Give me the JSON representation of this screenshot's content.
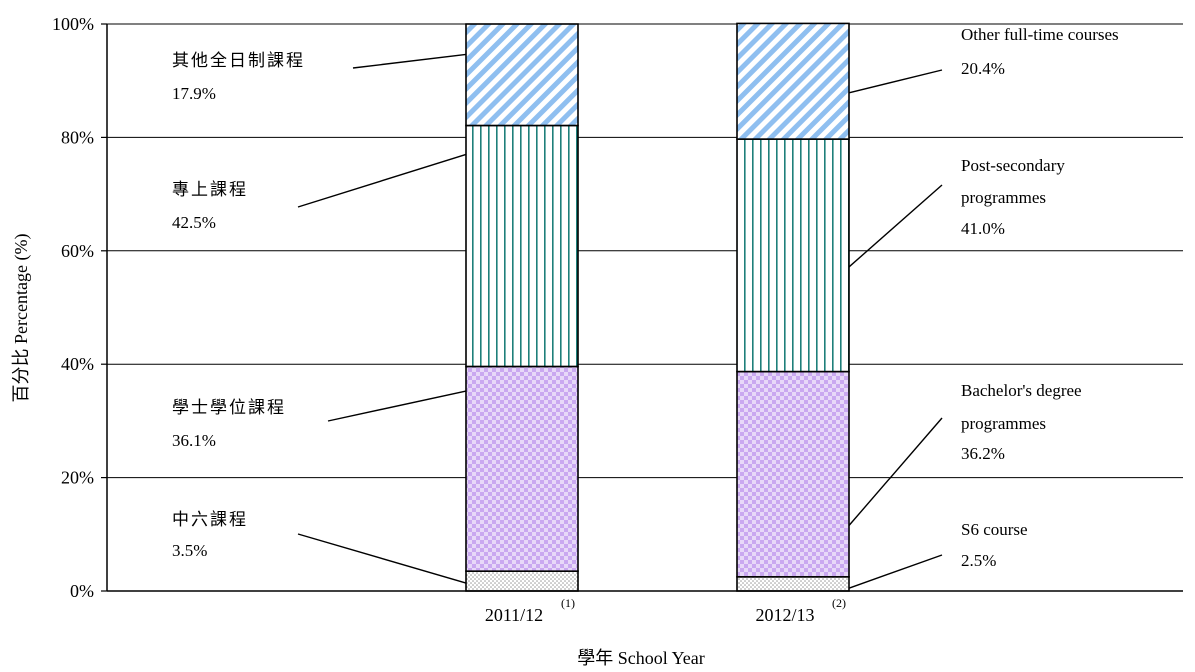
{
  "chart_data": {
    "type": "bar",
    "stacked": true,
    "categories": [
      "2011/12",
      "2012/13"
    ],
    "category_notes": [
      "(1)",
      "(2)"
    ],
    "series": [
      {
        "key": "s6",
        "values": [
          3.5,
          2.5
        ],
        "color": "#e0e0e0",
        "pattern": "dots"
      },
      {
        "key": "bachelor",
        "values": [
          36.1,
          36.2
        ],
        "color": "#c9a8f0",
        "pattern": "checker"
      },
      {
        "key": "postsec",
        "values": [
          42.5,
          41.0
        ],
        "color": "#1e7f7a",
        "pattern": "vertical-lines"
      },
      {
        "key": "other",
        "values": [
          17.9,
          20.4
        ],
        "color": "#8fbff0",
        "pattern": "diagonal"
      }
    ],
    "annotations_left": [
      {
        "label": "其他全日制課程",
        "value": "17.9%"
      },
      {
        "label": "專上課程",
        "value": "42.5%"
      },
      {
        "label": "學士學位課程",
        "value": "36.1%"
      },
      {
        "label": "中六課程",
        "value": "3.5%"
      }
    ],
    "annotations_right": [
      {
        "label_lines": [
          "Other full-time courses"
        ],
        "value": "20.4%"
      },
      {
        "label_lines": [
          "Post-secondary",
          "programmes"
        ],
        "value": "41.0%"
      },
      {
        "label_lines": [
          "Bachelor's degree",
          "programmes"
        ],
        "value": "36.2%"
      },
      {
        "label_lines": [
          "S6 course"
        ],
        "value": "2.5%"
      }
    ],
    "xlabel": "學年  School Year",
    "ylabel": "百分比 Percentage (%)",
    "ylim": [
      0,
      100
    ],
    "yticks": [
      0,
      20,
      40,
      60,
      80,
      100
    ],
    "ytick_labels": [
      "0%",
      "20%",
      "40%",
      "60%",
      "80%",
      "100%"
    ],
    "grid": true
  }
}
